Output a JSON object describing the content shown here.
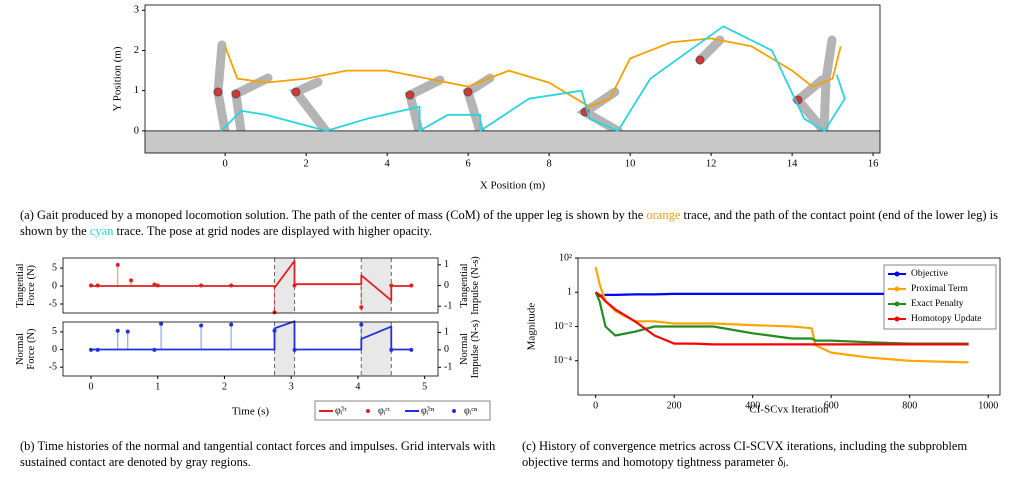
{
  "chart_data": [
    {
      "type": "line",
      "xlabel": "X Position (m)",
      "ylabel": "Y Position (m)",
      "xlim": [
        -1.98,
        16.17
      ],
      "ylim": [
        -0.55,
        3.13
      ],
      "xticks": [
        0,
        2,
        4,
        6,
        8,
        10,
        12,
        14,
        16
      ],
      "yticks": [
        0,
        1,
        2,
        3
      ],
      "ground": true,
      "series": [
        {
          "name": "orange",
          "color": "#f5a000",
          "x": [
            0,
            0.3,
            1,
            2,
            3,
            4,
            5,
            6,
            7,
            8,
            9,
            9.5,
            10,
            11,
            12,
            13,
            14,
            14.5,
            15,
            15.2
          ],
          "values": [
            2.1,
            1.3,
            1.2,
            1.3,
            1.5,
            1.5,
            1.3,
            1.1,
            1.5,
            1.2,
            0.6,
            0.8,
            1.8,
            2.2,
            2.3,
            2.1,
            1.5,
            1.1,
            1.3,
            2.1
          ]
        },
        {
          "name": "cyan",
          "color": "#2ad4e0",
          "x": [
            -0.1,
            0.4,
            1,
            2.5,
            3.5,
            4.8,
            4.8,
            5.5,
            6.3,
            6.3,
            7.5,
            8.8,
            9,
            9.7,
            10.5,
            12.3,
            13.5,
            14.3,
            14.8,
            15.3,
            15.1
          ],
          "values": [
            0,
            0.5,
            0.4,
            0,
            0.3,
            0.6,
            0,
            0.4,
            0.4,
            0,
            0.8,
            1,
            0.3,
            0,
            1.3,
            2.6,
            2,
            0.3,
            0,
            0.8,
            1.4
          ]
        }
      ]
    },
    {
      "type": "line",
      "ylabel": [
        "Tangential",
        "Force (N)"
      ],
      "y2label": [
        "Tangential",
        "Impulse (N-s)"
      ],
      "xlim": [
        -0.42,
        5.2
      ],
      "ylim": [
        -7.5,
        7.8
      ],
      "y2lim": [
        -1.33,
        1.33
      ],
      "yticks": [
        -5,
        0,
        5
      ],
      "y2ticks": [
        -1,
        0,
        1
      ],
      "contact_intervals": [
        [
          2.75,
          3.05
        ],
        [
          4.05,
          4.5
        ]
      ],
      "series": [
        {
          "name": "φ̃ᵢᶜᵗ",
          "color": "#e02020",
          "kind": "line",
          "x": [
            0,
            2.75,
            2.75,
            3.05,
            3.05,
            4.05,
            4.05,
            4.5,
            4.5,
            4.8
          ],
          "values": [
            0,
            0,
            -0.5,
            7,
            0.5,
            0.5,
            3,
            -4,
            0,
            0
          ]
        },
        {
          "name": "φᵢᶜᵗ",
          "color": "#e02020",
          "kind": "stem",
          "axis": "y2",
          "x": [
            0,
            0.1,
            0.4,
            0.6,
            0.95,
            1.0,
            1.65,
            2.1,
            2.75,
            3.05,
            4.05,
            4.5,
            4.8
          ],
          "values": [
            0,
            0,
            1.0,
            0.25,
            0.05,
            0,
            0,
            0,
            -1.3,
            0,
            -1.05,
            0,
            0
          ]
        }
      ]
    },
    {
      "type": "line",
      "xlabel": "Time (s)",
      "ylabel": [
        "Normal",
        "Force (N)"
      ],
      "y2label": [
        "Normal",
        "Impulse (N-s)"
      ],
      "xlim": [
        -0.42,
        5.2
      ],
      "ylim": [
        -7.5,
        7.8
      ],
      "y2lim": [
        -1.5,
        1.6
      ],
      "xticks": [
        0,
        1,
        2,
        3,
        4,
        5
      ],
      "yticks": [
        -5,
        0,
        5
      ],
      "y2ticks": [
        -1,
        0,
        1
      ],
      "contact_intervals": [
        [
          2.75,
          3.05
        ],
        [
          4.05,
          4.5
        ]
      ],
      "legend": "below right",
      "series": [
        {
          "name": "φ̃ᵢᶜⁿ",
          "color": "#2030e0",
          "kind": "line",
          "x": [
            0,
            2.75,
            2.75,
            3.05,
            3.05,
            4.05,
            4.05,
            4.5,
            4.5,
            4.8
          ],
          "values": [
            0,
            0,
            6,
            8,
            0,
            0,
            3,
            6.5,
            0,
            0
          ]
        },
        {
          "name": "φᵢᶜⁿ",
          "color": "#2030e0",
          "kind": "stem",
          "axis": "y2",
          "x": [
            0,
            0.1,
            0.4,
            0.55,
            0.95,
            1.05,
            1.65,
            2.1,
            2.75,
            3.05,
            4.05,
            4.5,
            4.8
          ],
          "values": [
            0,
            0,
            1.1,
            1.05,
            0,
            1.5,
            1.4,
            1.45,
            1.1,
            0,
            1.45,
            0,
            0
          ]
        }
      ]
    },
    {
      "type": "line",
      "xlabel": "CI-SCvx Iteration",
      "ylabel": "Magnitude",
      "ylog": true,
      "xlim": [
        -45,
        1030
      ],
      "ylim": [
        1e-06,
        100
      ],
      "xticks": [
        0,
        200,
        400,
        600,
        800,
        1000
      ],
      "yticks": [
        {
          "value": 0.0001,
          "label": "10⁻⁴"
        },
        {
          "value": 0.01,
          "label": "10⁻²"
        },
        1,
        {
          "value": 100,
          "label": "10²"
        }
      ],
      "legend": "upper right",
      "series": [
        {
          "name": "Objective",
          "color": "#0000ff",
          "x": [
            0,
            10,
            25,
            50,
            100,
            150,
            200,
            250,
            300,
            400,
            500,
            550,
            560,
            600,
            700,
            800,
            950
          ],
          "values": [
            1,
            0.6,
            0.7,
            0.7,
            0.75,
            0.75,
            0.8,
            0.8,
            0.8,
            0.8,
            0.8,
            0.8,
            0.8,
            0.8,
            0.8,
            0.8,
            0.8
          ]
        },
        {
          "name": "Proximal Term",
          "color": "#ffa500",
          "x": [
            0,
            10,
            25,
            50,
            100,
            150,
            200,
            250,
            300,
            400,
            500,
            550,
            560,
            600,
            700,
            800,
            950
          ],
          "values": [
            30,
            3,
            0.3,
            0.08,
            0.02,
            0.02,
            0.015,
            0.015,
            0.015,
            0.012,
            0.01,
            0.008,
            0.0008,
            0.0003,
            0.00015,
            0.0001,
            8e-05
          ]
        },
        {
          "name": "Exact Penalty",
          "color": "#228b22",
          "x": [
            0,
            10,
            25,
            50,
            100,
            150,
            200,
            250,
            300,
            400,
            500,
            550,
            560,
            600,
            700,
            800,
            950
          ],
          "values": [
            1,
            0.3,
            0.01,
            0.003,
            0.005,
            0.01,
            0.01,
            0.01,
            0.01,
            0.004,
            0.002,
            0.002,
            0.0015,
            0.0015,
            0.0012,
            0.001,
            0.001
          ]
        },
        {
          "name": "Homotopy Update",
          "color": "#ff0000",
          "x": [
            0,
            10,
            25,
            50,
            100,
            150,
            200,
            250,
            300,
            400,
            500,
            550,
            560,
            600,
            700,
            800,
            950
          ],
          "values": [
            1,
            0.7,
            0.3,
            0.1,
            0.02,
            0.003,
            0.001,
            0.001,
            0.0009,
            0.0009,
            0.0009,
            0.0009,
            0.0009,
            0.0009,
            0.0009,
            0.0009,
            0.0009
          ]
        }
      ]
    }
  ],
  "captions": {
    "a": [
      "(a) Gait produced by a monoped locomotion solution. The path of the center of mass (CoM) of the upper leg is shown by the ",
      "orange",
      " trace, and the path of the contact point (end of the lower leg) is shown by the ",
      "cyan",
      " trace. The pose at grid nodes are displayed with higher opacity."
    ],
    "b": "(b) Time histories of the normal and tangential contact forces and impulses. Grid intervals with sustained contact are denoted by gray regions.",
    "c": "(c) History of convergence metrics across CI-SCVX iterations, including the subproblem objective terms and homotopy tightness parameter δⱼ."
  }
}
